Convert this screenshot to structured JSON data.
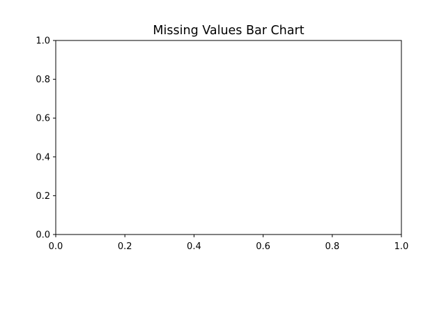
{
  "chart_data": {
    "type": "bar",
    "title": "Missing Values Bar Chart",
    "xlabel": "",
    "ylabel": "",
    "categories": [],
    "values": [],
    "xlim": [
      0.0,
      1.0
    ],
    "ylim": [
      0.0,
      1.0
    ],
    "xticks": [
      "0.0",
      "0.2",
      "0.4",
      "0.6",
      "0.8",
      "1.0"
    ],
    "yticks": [
      "0.0",
      "0.2",
      "0.4",
      "0.6",
      "0.8",
      "1.0"
    ],
    "grid": false,
    "legend": "none",
    "colors": {
      "axes": "#000000",
      "background": "#ffffff"
    }
  }
}
